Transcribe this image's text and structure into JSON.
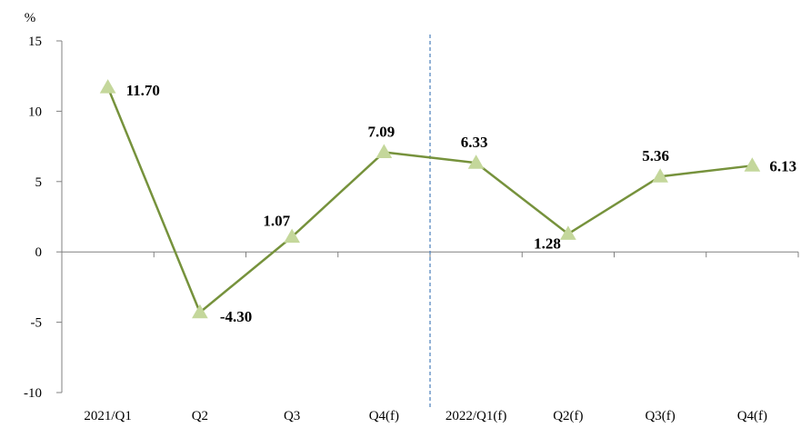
{
  "chart_data": {
    "type": "line",
    "yunit": "%",
    "ylim": [
      -10,
      15
    ],
    "yticks": [
      15,
      10,
      5,
      0,
      -5,
      -10
    ],
    "categories": [
      "2021/Q1",
      "Q2",
      "Q3",
      "Q4(f)",
      "2022/Q1(f)",
      "Q2(f)",
      "Q3(f)",
      "Q4(f)"
    ],
    "series": [
      {
        "values": [
          11.7,
          -4.3,
          1.07,
          7.09,
          6.33,
          1.28,
          5.36,
          6.13
        ],
        "value_labels": [
          "11.70",
          "-4.30",
          "1.07",
          "7.09",
          "6.33",
          "1.28",
          "5.36",
          "6.13"
        ]
      }
    ],
    "divider_after_category": "Q4(f)",
    "grid": false,
    "legend": "none",
    "colors": {
      "line": "#76923c",
      "marker": "#c4d79b",
      "axis": "#808080",
      "divider": "#4a7ebb"
    }
  }
}
